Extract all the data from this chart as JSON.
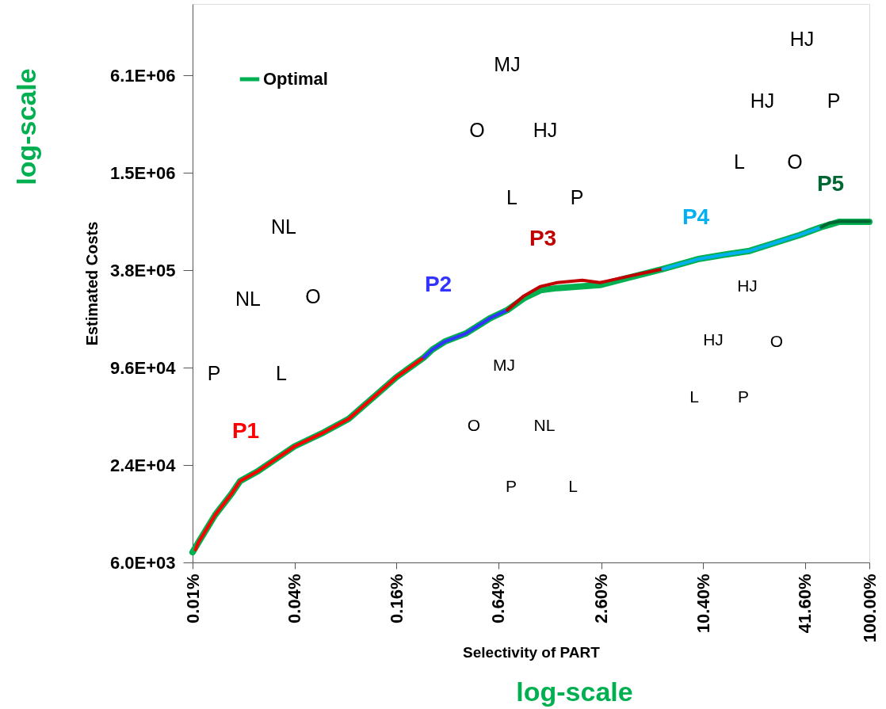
{
  "chart_data": {
    "type": "line",
    "xlabel": "Selectivity of PART",
    "ylabel": "Estimated Costs",
    "log": "xy",
    "legend": "top left",
    "grid": false,
    "marker": "none",
    "line_style": "solid",
    "xlim": [
      0.01,
      100
    ],
    "ylim": [
      6000,
      17000000
    ],
    "xticks": [
      {
        "value": 0.01,
        "label": "0.01%"
      },
      {
        "value": 0.04,
        "label": "0.04%"
      },
      {
        "value": 0.16,
        "label": "0.16%"
      },
      {
        "value": 0.64,
        "label": "0.64%"
      },
      {
        "value": 2.6,
        "label": "2.60%"
      },
      {
        "value": 10.4,
        "label": "10.40%"
      },
      {
        "value": 41.6,
        "label": "41.60%"
      },
      {
        "value": 100,
        "label": "100.00%"
      }
    ],
    "yticks": [
      {
        "value": 6000,
        "label": "6.0E+03"
      },
      {
        "value": 24000,
        "label": "2.4E+04"
      },
      {
        "value": 96000,
        "label": "9.6E+04"
      },
      {
        "value": 384000,
        "label": "3.8E+05"
      },
      {
        "value": 1536000,
        "label": "1.5E+06"
      },
      {
        "value": 6144000,
        "label": "6.1E+06"
      }
    ],
    "series": [
      {
        "name": "Optimal",
        "color": "#00b050",
        "x": [
          0.01,
          0.0108,
          0.0136,
          0.0171,
          0.0191,
          0.024,
          0.04,
          0.0596,
          0.0837,
          0.118,
          0.16,
          0.233,
          0.261,
          0.309,
          0.411,
          0.578,
          0.725,
          0.91,
          1.14,
          1.43,
          2.56,
          3.61,
          6.01,
          9.9,
          13.9,
          19.6,
          27.5,
          38.7,
          51.9,
          57.7,
          66.6,
          100
        ],
        "values": [
          6940,
          7940,
          11800,
          16100,
          19100,
          21800,
          31300,
          38200,
          46300,
          63400,
          83800,
          111000,
          124000,
          139000,
          156000,
          195000,
          218000,
          258000,
          289000,
          298000,
          311000,
          341000,
          391000,
          452000,
          479000,
          506000,
          566000,
          634000,
          709000,
          733000,
          766000,
          766000
        ]
      },
      {
        "name": "P1",
        "color": "#ff0000",
        "x": [
          0.0104,
          0.0108,
          0.0136,
          0.0171,
          0.0191,
          0.024,
          0.04,
          0.0596,
          0.0837,
          0.118,
          0.16,
          0.233
        ],
        "values": [
          7200,
          7940,
          11800,
          16100,
          19100,
          21800,
          31300,
          38200,
          46300,
          63400,
          83800,
          111000
        ]
      },
      {
        "name": "P2",
        "color": "#3333ff",
        "x": [
          0.233,
          0.261,
          0.309,
          0.411,
          0.578,
          0.725
        ],
        "values": [
          111000,
          124000,
          139000,
          156000,
          195000,
          218000
        ]
      },
      {
        "name": "P3",
        "color": "#c00000",
        "x": [
          0.725,
          0.91,
          1.14,
          1.43,
          2.01,
          2.56,
          3.61,
          6.01
        ],
        "values": [
          218000,
          267000,
          305000,
          322000,
          333000,
          322000,
          349000,
          391000
        ]
      },
      {
        "name": "P4",
        "color": "#00b0f0",
        "x": [
          6.01,
          9.9,
          13.9,
          19.6,
          27.5,
          38.7,
          51.9
        ],
        "values": [
          391000,
          452000,
          479000,
          506000,
          566000,
          634000,
          709000
        ]
      },
      {
        "name": "P5",
        "color": "#006633",
        "x": [
          51.9,
          57.7,
          66.6,
          100
        ],
        "values": [
          709000,
          750000,
          770000,
          770000
        ]
      }
    ],
    "annotations": [
      "log-scale",
      "log-scale",
      "NL",
      "O",
      "NL",
      "P",
      "L",
      "MJ",
      "O",
      "HJ",
      "L",
      "P",
      "HJ",
      "P",
      "HJ",
      "L",
      "O",
      "HJ",
      "O",
      "HJ",
      "L",
      "P",
      "MJ",
      "O",
      "NL",
      "P",
      "L"
    ]
  }
}
